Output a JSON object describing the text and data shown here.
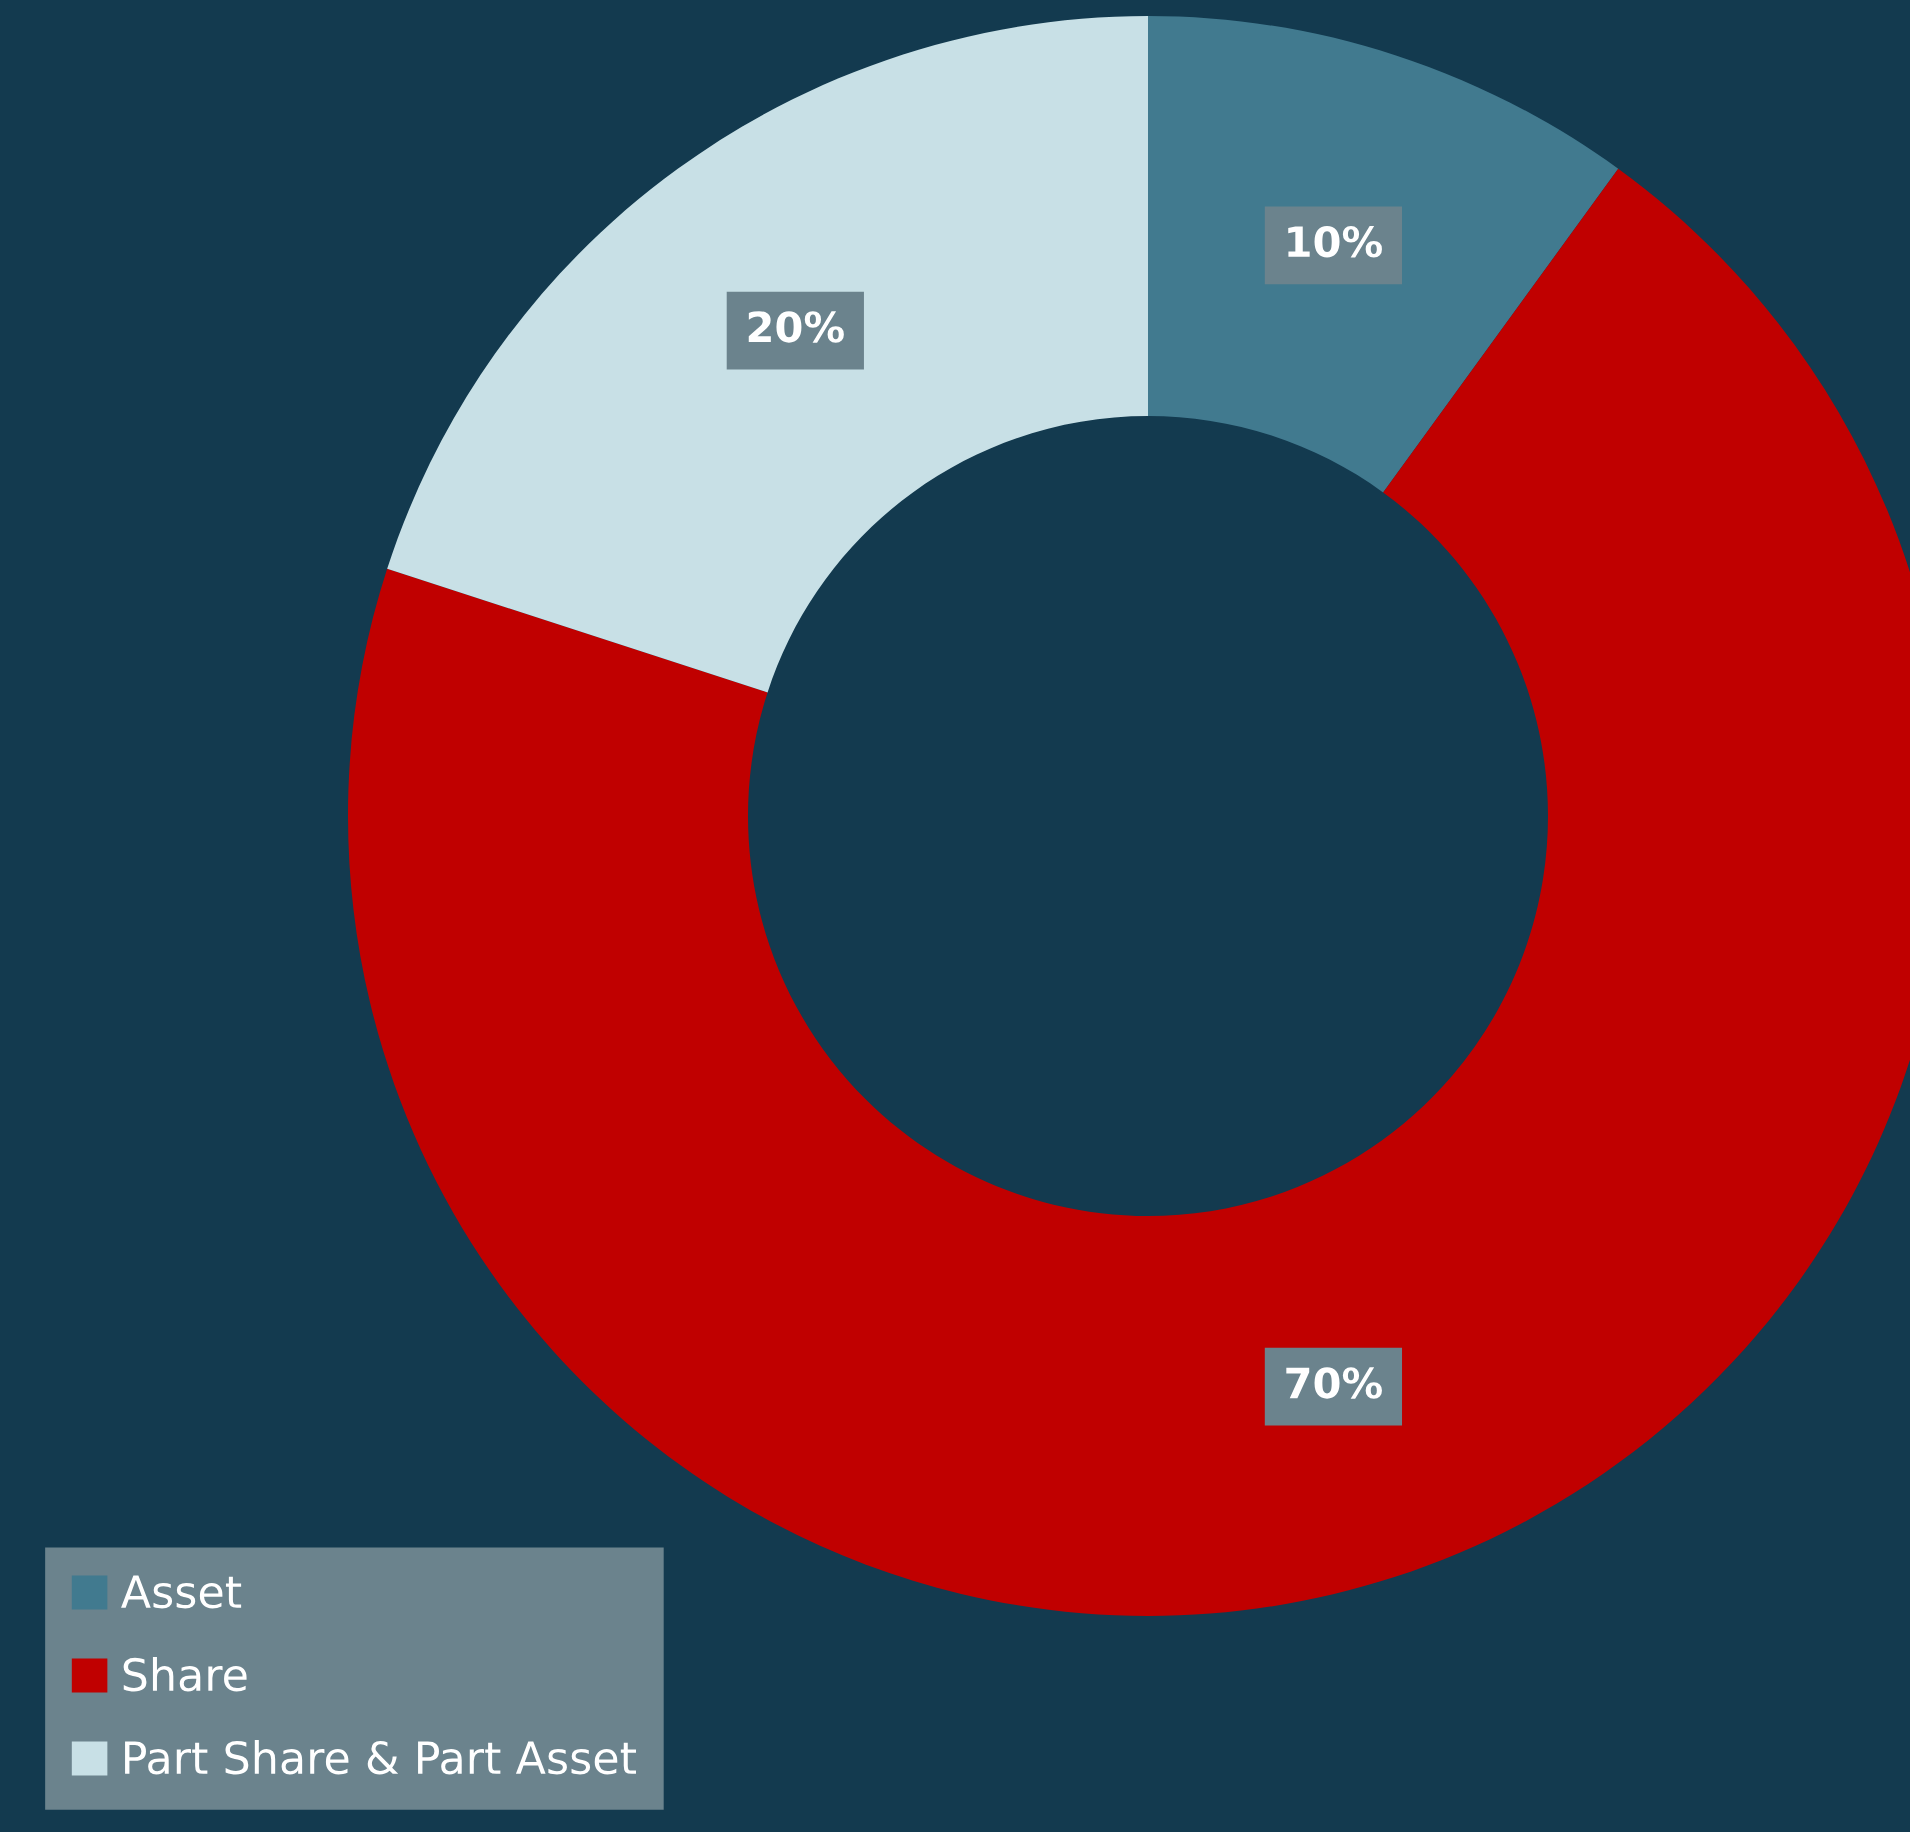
{
  "chart_data": {
    "type": "donut",
    "categories": [
      "Asset",
      "Share",
      "Part Share & Part Asset"
    ],
    "values": [
      10,
      70,
      20
    ],
    "colors": [
      "#417a8f",
      "#c00000",
      "#c8e0e6"
    ],
    "value_labels": [
      "10%",
      "70%",
      "20%"
    ],
    "legend": "bottom left"
  }
}
